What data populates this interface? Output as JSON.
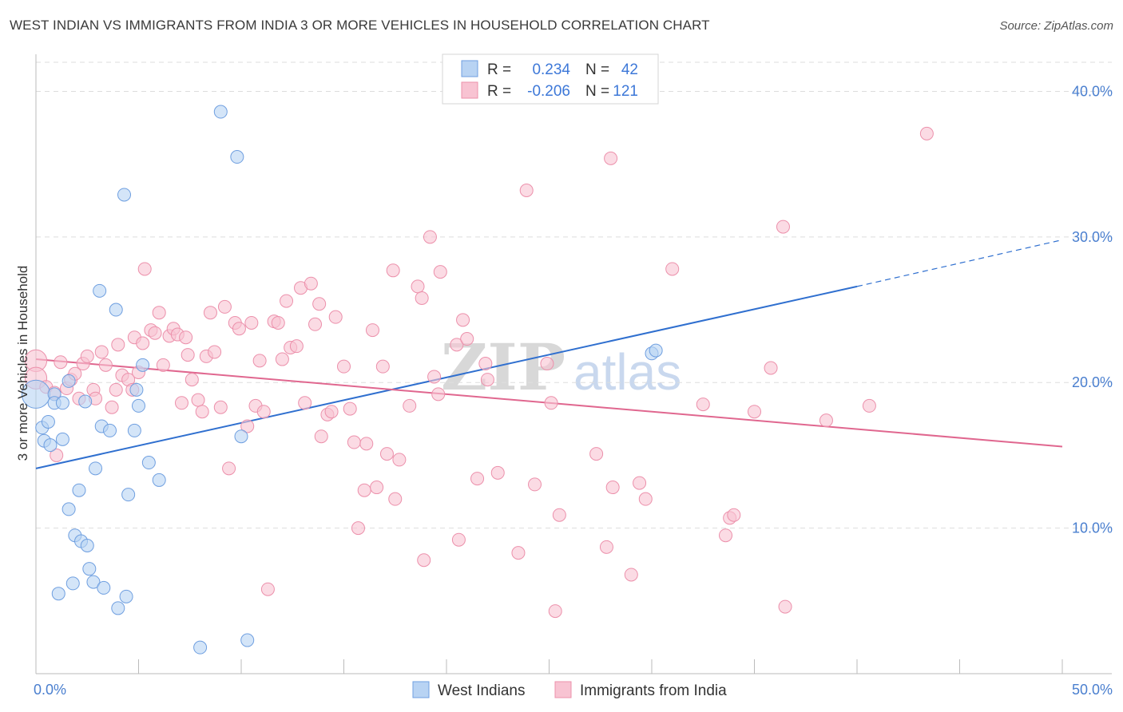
{
  "title": "WEST INDIAN VS IMMIGRANTS FROM INDIA 3 OR MORE VEHICLES IN HOUSEHOLD CORRELATION CHART",
  "source": "Source: ZipAtlas.com",
  "watermark": {
    "zip": "ZIP",
    "atlas": "atlas"
  },
  "colors": {
    "blue_fill": "#b8d3f3",
    "blue_stroke": "#6f9fe0",
    "blue_line": "#2f6fcf",
    "pink_fill": "#f8c3d2",
    "pink_stroke": "#ec90ab",
    "pink_line": "#e0678f",
    "tick": "#4a7fcf",
    "grid": "#dddddd"
  },
  "legend": {
    "rows": [
      {
        "r_label": "R =",
        "r_value": "0.234",
        "n_label": "N =",
        "n_value": "42"
      },
      {
        "r_label": "R =",
        "r_value": "-0.206",
        "n_label": "N =",
        "n_value": "121"
      }
    ]
  },
  "bottom_legend": [
    "West Indians",
    "Immigrants from India"
  ],
  "chart_data": {
    "type": "scatter",
    "title": "WEST INDIAN VS IMMIGRANTS FROM INDIA 3 OR MORE VEHICLES IN HOUSEHOLD CORRELATION CHART",
    "xlabel": "",
    "ylabel": "3 or more Vehicles in Household",
    "xlim": [
      0,
      50
    ],
    "ylim": [
      0,
      42
    ],
    "x_tick_labels": [
      "0.0%",
      "50.0%"
    ],
    "y_ticks": [
      10,
      20,
      30,
      40
    ],
    "y_tick_labels": [
      "10.0%",
      "20.0%",
      "30.0%",
      "40.0%"
    ],
    "grid": true,
    "series": [
      {
        "name": "West Indians",
        "R": 0.234,
        "N": 42,
        "trend": {
          "x0": 0,
          "y0": 14.1,
          "x1": 40,
          "y1": 26.6,
          "dash_to_x": 50,
          "dash_to_y": 29.8
        },
        "points": [
          [
            0,
            19.2,
            2.2
          ],
          [
            0.3,
            16.9,
            1
          ],
          [
            0.4,
            16.0,
            1
          ],
          [
            0.6,
            17.3,
            1
          ],
          [
            0.7,
            15.7,
            1
          ],
          [
            0.9,
            19.2,
            1
          ],
          [
            0.9,
            18.6,
            1
          ],
          [
            1.1,
            5.5,
            1
          ],
          [
            1.3,
            18.6,
            1
          ],
          [
            1.3,
            16.1,
            1
          ],
          [
            1.6,
            20.1,
            1
          ],
          [
            1.6,
            11.3,
            1
          ],
          [
            1.8,
            6.2,
            1
          ],
          [
            1.9,
            9.5,
            1
          ],
          [
            2.1,
            12.6,
            1
          ],
          [
            2.2,
            9.1,
            1
          ],
          [
            2.4,
            18.7,
            1
          ],
          [
            2.5,
            8.8,
            1
          ],
          [
            2.6,
            7.2,
            1
          ],
          [
            2.8,
            6.3,
            1
          ],
          [
            2.9,
            14.1,
            1
          ],
          [
            3.1,
            26.3,
            1
          ],
          [
            3.2,
            17.0,
            1
          ],
          [
            3.3,
            5.9,
            1
          ],
          [
            3.6,
            16.7,
            1
          ],
          [
            3.9,
            25.0,
            1
          ],
          [
            4.0,
            4.5,
            1
          ],
          [
            4.3,
            32.9,
            1
          ],
          [
            4.4,
            5.3,
            1
          ],
          [
            4.5,
            12.3,
            1
          ],
          [
            4.8,
            16.7,
            1
          ],
          [
            4.9,
            19.5,
            1
          ],
          [
            5.0,
            18.4,
            1
          ],
          [
            5.2,
            21.2,
            1
          ],
          [
            5.5,
            14.5,
            1
          ],
          [
            6.0,
            13.3,
            1
          ],
          [
            8.0,
            1.8,
            1
          ],
          [
            9.0,
            38.6,
            1
          ],
          [
            9.8,
            35.5,
            1
          ],
          [
            10.0,
            16.3,
            1
          ],
          [
            10.3,
            2.3,
            1
          ],
          [
            30.0,
            22.0,
            1
          ],
          [
            30.2,
            22.2,
            1
          ]
        ]
      },
      {
        "name": "Immigrants from India",
        "R": -0.206,
        "N": 121,
        "trend": {
          "x0": 0,
          "y0": 21.6,
          "x1": 50,
          "y1": 15.6
        },
        "points": [
          [
            0,
            21.5,
            1.7
          ],
          [
            0,
            20.3,
            1.7
          ],
          [
            0.5,
            19.7,
            1
          ],
          [
            0.9,
            19.3,
            1
          ],
          [
            1.0,
            15.0,
            1
          ],
          [
            1.2,
            21.4,
            1
          ],
          [
            1.5,
            19.6,
            1
          ],
          [
            1.7,
            20.2,
            1
          ],
          [
            1.9,
            20.6,
            1
          ],
          [
            2.1,
            18.9,
            1
          ],
          [
            2.3,
            21.3,
            1
          ],
          [
            2.5,
            21.8,
            1
          ],
          [
            2.8,
            19.5,
            1
          ],
          [
            2.9,
            18.9,
            1
          ],
          [
            3.2,
            22.1,
            1
          ],
          [
            3.4,
            21.2,
            1
          ],
          [
            3.7,
            18.3,
            1
          ],
          [
            3.9,
            19.5,
            1
          ],
          [
            4.0,
            22.6,
            1
          ],
          [
            4.2,
            20.5,
            1
          ],
          [
            4.5,
            20.2,
            1
          ],
          [
            4.7,
            19.5,
            1
          ],
          [
            4.8,
            23.1,
            1
          ],
          [
            5.0,
            20.7,
            1
          ],
          [
            5.2,
            22.7,
            1
          ],
          [
            5.3,
            27.8,
            1
          ],
          [
            5.6,
            23.6,
            1
          ],
          [
            5.8,
            23.4,
            1
          ],
          [
            6.0,
            24.8,
            1
          ],
          [
            6.2,
            21.2,
            1
          ],
          [
            6.5,
            23.2,
            1
          ],
          [
            6.7,
            23.7,
            1
          ],
          [
            6.9,
            23.3,
            1
          ],
          [
            7.1,
            18.6,
            1
          ],
          [
            7.3,
            23.1,
            1
          ],
          [
            7.4,
            21.9,
            1
          ],
          [
            7.6,
            20.2,
            1
          ],
          [
            7.9,
            18.8,
            1
          ],
          [
            8.1,
            18.0,
            1
          ],
          [
            8.3,
            21.8,
            1
          ],
          [
            8.5,
            24.8,
            1
          ],
          [
            8.7,
            22.1,
            1
          ],
          [
            9.0,
            18.3,
            1
          ],
          [
            9.2,
            25.2,
            1
          ],
          [
            9.4,
            14.1,
            1
          ],
          [
            9.7,
            24.1,
            1
          ],
          [
            9.9,
            23.7,
            1
          ],
          [
            10.3,
            17.0,
            1
          ],
          [
            10.5,
            24.1,
            1
          ],
          [
            10.7,
            18.4,
            1
          ],
          [
            10.9,
            21.5,
            1
          ],
          [
            11.1,
            18.0,
            1
          ],
          [
            11.3,
            5.8,
            1
          ],
          [
            11.6,
            24.2,
            1
          ],
          [
            11.8,
            24.1,
            1
          ],
          [
            12.0,
            21.6,
            1
          ],
          [
            12.2,
            25.6,
            1
          ],
          [
            12.4,
            22.4,
            1
          ],
          [
            12.7,
            22.5,
            1
          ],
          [
            12.9,
            26.5,
            1
          ],
          [
            13.1,
            18.6,
            1
          ],
          [
            13.4,
            26.8,
            1
          ],
          [
            13.6,
            24.0,
            1
          ],
          [
            13.8,
            25.4,
            1
          ],
          [
            13.9,
            16.3,
            1
          ],
          [
            14.2,
            17.8,
            1
          ],
          [
            14.4,
            18.0,
            1
          ],
          [
            14.6,
            24.5,
            1
          ],
          [
            15.0,
            21.1,
            1
          ],
          [
            15.3,
            18.2,
            1
          ],
          [
            15.5,
            15.9,
            1
          ],
          [
            15.7,
            10.0,
            1
          ],
          [
            16.0,
            12.6,
            1
          ],
          [
            16.1,
            15.8,
            1
          ],
          [
            16.4,
            23.6,
            1
          ],
          [
            16.6,
            12.8,
            1
          ],
          [
            16.9,
            21.1,
            1
          ],
          [
            17.1,
            15.1,
            1
          ],
          [
            17.4,
            27.7,
            1
          ],
          [
            17.5,
            12.0,
            1
          ],
          [
            17.7,
            14.7,
            1
          ],
          [
            18.2,
            18.4,
            1
          ],
          [
            18.6,
            26.6,
            1
          ],
          [
            18.8,
            25.8,
            1
          ],
          [
            18.9,
            7.8,
            1
          ],
          [
            19.2,
            30.0,
            1
          ],
          [
            19.4,
            20.4,
            1
          ],
          [
            19.7,
            27.6,
            1
          ],
          [
            19.6,
            19.2,
            1
          ],
          [
            20.5,
            22.6,
            1
          ],
          [
            20.6,
            9.2,
            1
          ],
          [
            20.8,
            24.3,
            1
          ],
          [
            21.0,
            23.0,
            1
          ],
          [
            21.5,
            13.4,
            1
          ],
          [
            21.9,
            21.3,
            1
          ],
          [
            22.0,
            20.2,
            1
          ],
          [
            22.5,
            13.8,
            1
          ],
          [
            23.5,
            8.3,
            1
          ],
          [
            23.9,
            33.2,
            1
          ],
          [
            24.3,
            13.0,
            1
          ],
          [
            24.9,
            21.3,
            1
          ],
          [
            25.1,
            18.6,
            1
          ],
          [
            25.3,
            4.3,
            1
          ],
          [
            25.5,
            10.9,
            1
          ],
          [
            27.3,
            15.1,
            1
          ],
          [
            27.8,
            8.7,
            1
          ],
          [
            28.0,
            35.4,
            1
          ],
          [
            28.1,
            12.8,
            1
          ],
          [
            29.0,
            6.8,
            1
          ],
          [
            29.4,
            13.1,
            1
          ],
          [
            29.7,
            12.0,
            1
          ],
          [
            31.0,
            27.8,
            1
          ],
          [
            32.5,
            18.5,
            1
          ],
          [
            33.6,
            9.5,
            1
          ],
          [
            33.8,
            10.7,
            1
          ],
          [
            34.0,
            10.9,
            1
          ],
          [
            35.0,
            18.0,
            1
          ],
          [
            35.8,
            21.0,
            1
          ],
          [
            36.5,
            4.6,
            1
          ],
          [
            36.4,
            30.7,
            1
          ],
          [
            38.5,
            17.4,
            1
          ],
          [
            40.6,
            18.4,
            1
          ],
          [
            43.4,
            37.1,
            1
          ]
        ]
      }
    ]
  }
}
